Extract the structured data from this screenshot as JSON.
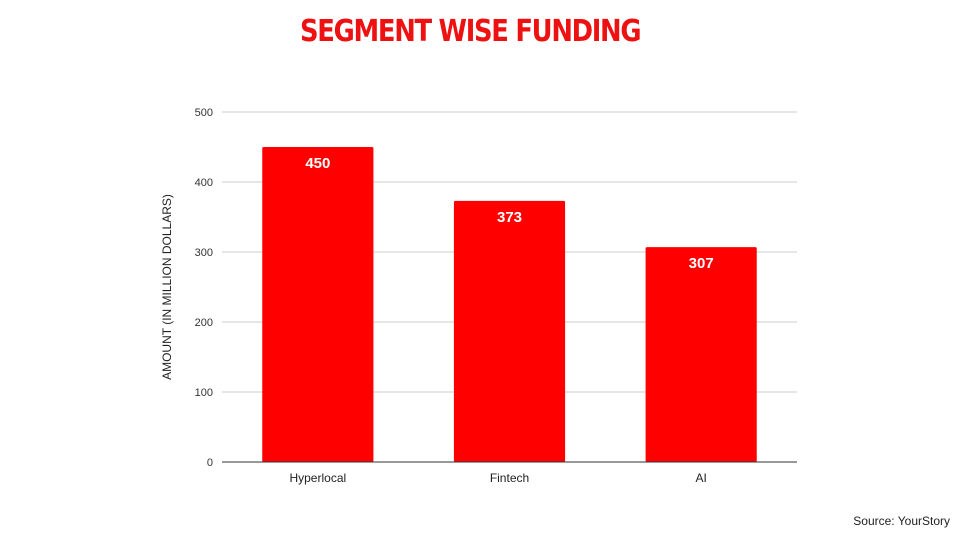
{
  "chart_data": {
    "type": "bar",
    "title": "SEGMENT WISE FUNDING",
    "categories": [
      "Hyperlocal",
      "Fintech",
      "AI"
    ],
    "values": [
      450,
      373,
      307
    ],
    "ylabel": "AMOUNT (IN MILLION DOLLARS)",
    "xlabel": "",
    "ylim": [
      0,
      500
    ],
    "yticks": [
      0,
      100,
      200,
      300,
      400,
      500
    ],
    "grid": true,
    "legend": "none",
    "bar_color": "#ff0000",
    "data_labels": true
  },
  "source": "Source: YourStory"
}
